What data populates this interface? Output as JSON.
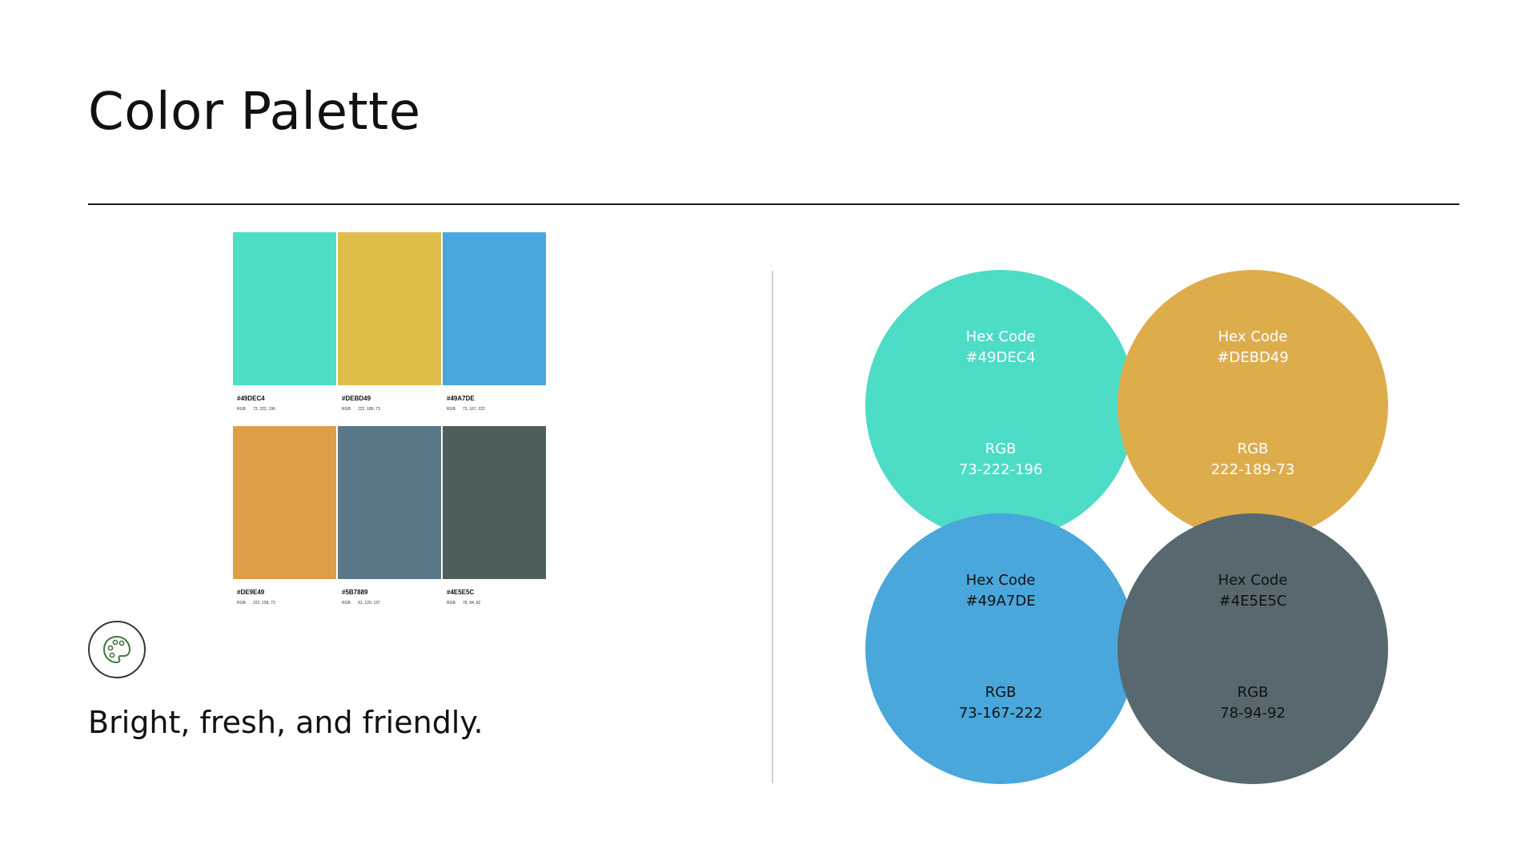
{
  "title": "Color Palette",
  "tagline": "Bright, fresh, and friendly.",
  "icon": "palette-icon",
  "swatches": [
    {
      "hex": "#49DEC4",
      "rgb_label": "RGB",
      "rgb": "73, 222, 196",
      "color": "#4DDEC6"
    },
    {
      "hex": "#DEBD49",
      "rgb_label": "RGB",
      "rgb": "222, 189, 73",
      "color": "#DEBD4B"
    },
    {
      "hex": "#49A7DE",
      "rgb_label": "RGB",
      "rgb": "73, 167, 222",
      "color": "#49A7DE"
    },
    {
      "hex": "#DE9E49",
      "rgb_label": "RGB",
      "rgb": "222, 158, 73",
      "color": "#DE9E49"
    },
    {
      "hex": "#5B7889",
      "rgb_label": "RGB",
      "rgb": "91, 120, 137",
      "color": "#5B7889"
    },
    {
      "hex": "#4E5E5C",
      "rgb_label": "RGB",
      "rgb": "78, 94, 92",
      "color": "#4E5E5C"
    }
  ],
  "circles": [
    {
      "hex_label": "Hex Code",
      "hex": "#49DEC4",
      "rgb_label": "RGB",
      "rgb": "73-222-196",
      "color": "#4DDCC6"
    },
    {
      "hex_label": "Hex Code",
      "hex": "#DEBD49",
      "rgb_label": "RGB",
      "rgb": "222-189-73",
      "color": "#DDAD4C"
    },
    {
      "hex_label": "Hex Code",
      "hex": "#49A7DE",
      "rgb_label": "RGB",
      "rgb": "73-167-222",
      "color": "#49A7DC"
    },
    {
      "hex_label": "Hex Code",
      "hex": "#4E5E5C",
      "rgb_label": "RGB",
      "rgb": "78-94-92",
      "color": "#57696F"
    }
  ]
}
